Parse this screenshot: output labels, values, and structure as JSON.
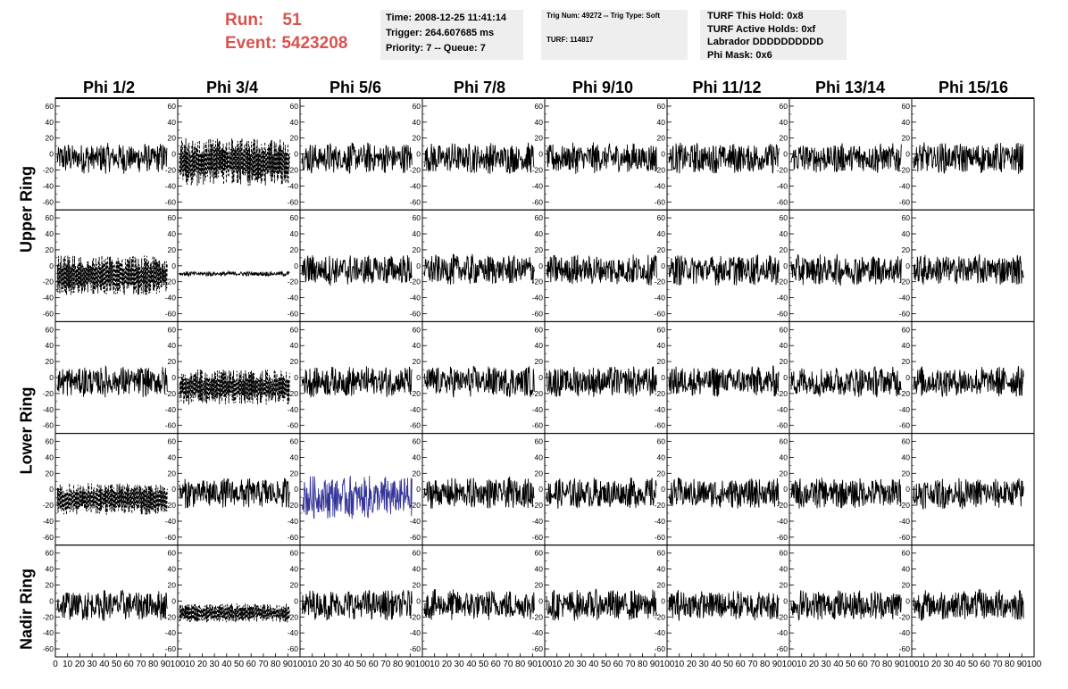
{
  "header": {
    "run_label": "Run:",
    "run_value": "51",
    "event_label": "Event:",
    "event_value": "5423208",
    "time": "Time: 2008-12-25 11:41:14",
    "trigger": "Trigger: 264.607685 ms",
    "priority": "Priority: 7 -- Queue: 7",
    "trig_num": "Trig Num: 49272 -- Trig Type: Soft",
    "turf": "TURF: 114817",
    "turf_this_hold": "TURF This Hold: 0x8",
    "turf_active_holds": "TURF Active Holds: 0xf",
    "labrador": "Labrador DDDDDDDDDD",
    "phi_mask": "Phi Mask: 0x6"
  },
  "columns": [
    "Phi 1/2",
    "Phi 3/4",
    "Phi 5/6",
    "Phi 7/8",
    "Phi 9/10",
    "Phi 11/12",
    "Phi 13/14",
    "Phi 15/16"
  ],
  "rows": [
    "Upper Ring",
    "Lower Ring",
    "Nadir Ring"
  ],
  "colors": {
    "trace": "#000000",
    "highlight": "#333399",
    "run_text": "#d9534f",
    "panel_bg": "#eeeeee"
  },
  "chart_data": {
    "type": "line",
    "ylim": [
      -70,
      70
    ],
    "yticks": [
      -60,
      -40,
      -20,
      0,
      20,
      40,
      60
    ],
    "xlim": [
      0,
      100
    ],
    "xticks": [
      0,
      10,
      20,
      30,
      40,
      50,
      60,
      70,
      80,
      90,
      100
    ],
    "grid": false,
    "legend": "none",
    "panel_rows": 5,
    "panel_cols": 8,
    "special_panels": [
      {
        "row": 0,
        "col": 1,
        "style": "dashed",
        "offset": -10,
        "amplitude": 30
      },
      {
        "row": 1,
        "col": 0,
        "style": "dashed",
        "offset": -12,
        "amplitude": 25
      },
      {
        "row": 1,
        "col": 1,
        "style": "flat",
        "offset": -10,
        "amplitude": 3
      },
      {
        "row": 2,
        "col": 1,
        "style": "dashed",
        "offset": -12,
        "amplitude": 22
      },
      {
        "row": 3,
        "col": 0,
        "style": "dashed",
        "offset": -12,
        "amplitude": 20
      },
      {
        "row": 3,
        "col": 2,
        "style": "blue",
        "offset": -10,
        "amplitude": 28
      },
      {
        "row": 4,
        "col": 1,
        "style": "dashed",
        "offset": -15,
        "amplitude": 12
      }
    ],
    "default_panel": {
      "style": "solid",
      "offset": -5,
      "amplitude": 20
    }
  }
}
